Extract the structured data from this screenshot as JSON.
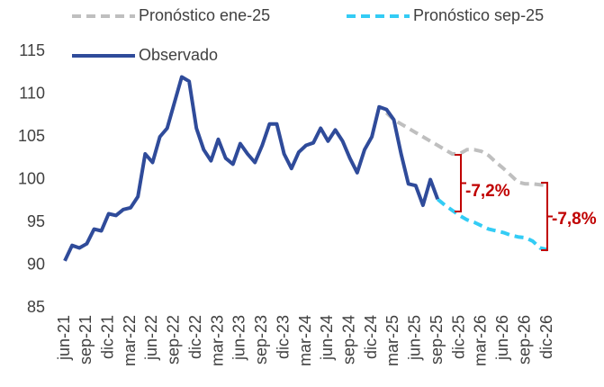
{
  "chart_data": {
    "type": "line",
    "categories": [
      "jun-21",
      null,
      null,
      "sep-21",
      null,
      null,
      "dic-21",
      null,
      null,
      "mar-22",
      null,
      null,
      "jun-22",
      null,
      null,
      "sep-22",
      null,
      null,
      "dic-22",
      null,
      null,
      "mar-23",
      null,
      null,
      "jun-23",
      null,
      null,
      "sep-23",
      null,
      null,
      "dic-23",
      null,
      null,
      "mar-24",
      null,
      null,
      "jun-24",
      null,
      null,
      "sep-24",
      null,
      null,
      "dic-24",
      null,
      null,
      "mar-25",
      null,
      null,
      "jun-25",
      null,
      null,
      "sep-25",
      null,
      null,
      "dic-25",
      null,
      null,
      "mar-26",
      null,
      null,
      "jun-26",
      null,
      null,
      "sep-26",
      null,
      null,
      "dic-26"
    ],
    "series": [
      {
        "name": "Pronóstico ene-25",
        "color": "#bfbfbf",
        "dashed": true,
        "values": [
          null,
          null,
          null,
          null,
          null,
          null,
          null,
          null,
          null,
          null,
          null,
          null,
          null,
          null,
          null,
          null,
          null,
          null,
          null,
          null,
          null,
          null,
          null,
          null,
          null,
          null,
          null,
          null,
          null,
          null,
          null,
          null,
          null,
          null,
          null,
          null,
          null,
          null,
          null,
          null,
          null,
          null,
          null,
          null,
          107.8,
          107,
          106.5,
          106,
          105.5,
          105,
          104.5,
          104,
          103.5,
          103,
          103,
          103.5,
          103.5,
          103.3,
          102.8,
          102,
          101.3,
          100.5,
          99.7,
          99.5,
          99.5,
          99.4,
          99.3
        ]
      },
      {
        "name": "Pronóstico sep-25",
        "color": "#33ccf5",
        "dashed": true,
        "values": [
          null,
          null,
          null,
          null,
          null,
          null,
          null,
          null,
          null,
          null,
          null,
          null,
          null,
          null,
          null,
          null,
          null,
          null,
          null,
          null,
          null,
          null,
          null,
          null,
          null,
          null,
          null,
          null,
          null,
          null,
          null,
          null,
          null,
          null,
          null,
          null,
          null,
          null,
          null,
          null,
          null,
          null,
          null,
          null,
          null,
          null,
          null,
          null,
          null,
          null,
          null,
          97.7,
          97,
          96.4,
          95.8,
          95.3,
          95,
          94.6,
          94.2,
          94,
          93.8,
          93.5,
          93.3,
          93.2,
          92.8,
          92,
          91.8
        ]
      },
      {
        "name": "Observado",
        "color": "#2f4b9a",
        "dashed": false,
        "values": [
          90.5,
          92.3,
          92,
          92.5,
          94.2,
          94,
          96,
          95.8,
          96.5,
          96.7,
          98,
          103,
          102,
          105,
          106,
          109,
          112,
          111.5,
          106,
          103.5,
          102.2,
          104.7,
          102.5,
          101.8,
          104.2,
          103,
          102,
          104,
          106.5,
          106.5,
          103,
          101.3,
          103.2,
          104,
          104.3,
          106,
          104.5,
          105.8,
          104.5,
          102.5,
          100.8,
          103.5,
          105,
          108.5,
          108.2,
          107,
          103,
          99.5,
          99.3,
          97,
          100,
          97.7,
          null,
          null,
          null,
          null,
          null,
          null,
          null,
          null,
          null,
          null,
          null,
          null,
          null,
          null,
          null
        ]
      }
    ],
    "annotations": [
      "-7,2%",
      "-7,8%"
    ],
    "ylim": [
      85,
      115
    ],
    "yticks": [
      85,
      90,
      95,
      100,
      105,
      110,
      115
    ],
    "grid": false
  }
}
